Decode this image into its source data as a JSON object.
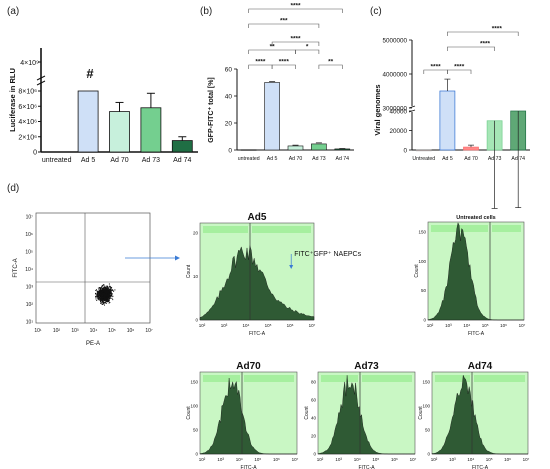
{
  "panel_letters": [
    "(a)",
    "(b)",
    "(c)",
    "(d)"
  ],
  "colors": {
    "untreated": "#9a9a9a",
    "ad5": "#cfe0f7",
    "ad70": "#c7f0dc",
    "ad73": "#74cf8f",
    "ad74": "#1f6e44",
    "c_ad5": "#2f6fd0",
    "c_ad70": "#ff6a6a",
    "hist_bg": "#c9f7c4",
    "hist_band": "#a6ef9f",
    "hist_fill": "#2f5a34",
    "arrow": "#3a7bd5"
  },
  "chart_data": [
    {
      "id": "a",
      "type": "bar",
      "ylabel": "Luciferase in RLU",
      "categories": [
        "untreated",
        "Ad 5",
        "Ad 70",
        "Ad 73",
        "Ad 74"
      ],
      "values": [
        0,
        8000000,
        5300000,
        5800000,
        1500000
      ],
      "errors": [
        0,
        0,
        1200000,
        1900000,
        500000
      ],
      "ylim": [
        0,
        8000000
      ],
      "yticks": [
        0,
        2000000,
        4000000,
        6000000,
        8000000
      ],
      "ytick_labels": [
        "0",
        "2×10⁶",
        "4×10⁶",
        "6×10⁶",
        "8×10⁶"
      ],
      "top_tick_label": "4×10⁹",
      "annotation": "#"
    },
    {
      "id": "b",
      "type": "bar",
      "ylabel": "GFP-FITC⁺ total [%]",
      "categories": [
        "untreated",
        "Ad 5",
        "Ad 70",
        "Ad 73",
        "Ad 74"
      ],
      "values": [
        0.2,
        50,
        3,
        4.5,
        0.8
      ],
      "errors": [
        0,
        0.8,
        0.6,
        0.8,
        0.3
      ],
      "ylim": [
        0,
        60
      ],
      "yticks": [
        0,
        20,
        40,
        60
      ],
      "ytick_labels": [
        "0",
        "20",
        "40",
        "60"
      ],
      "significance": [
        "****",
        "****",
        "****",
        "**",
        "****",
        "****",
        "***",
        "**",
        "*",
        "**"
      ]
    },
    {
      "id": "c",
      "type": "bar",
      "ylabel": "Viral genomes",
      "categories": [
        "Untreated",
        "Ad 5",
        "Ad 70",
        "Ad 73",
        "Ad 74"
      ],
      "values": [
        0,
        3500000,
        3000,
        30000,
        40000
      ],
      "errors": [
        0,
        350000,
        2000,
        15000,
        30000
      ],
      "ytick_labels": [
        "0",
        "20000",
        "40000",
        "3000000",
        "4000000",
        "5000000"
      ],
      "significance": [
        "****",
        "****",
        "****",
        "****"
      ]
    }
  ],
  "scatter": {
    "xlabel": "PE-A",
    "ylabel": "FITC-A",
    "tick_labels": [
      "10¹",
      "10²",
      "10³",
      "10⁴",
      "10⁵",
      "10⁶",
      "10⁷"
    ]
  },
  "histograms": [
    {
      "title": "Ad5",
      "xlabel": "FITC-A",
      "ylabel": "Count",
      "yticks": [
        "0",
        "10",
        "20"
      ],
      "xticks": [
        "10²",
        "10³",
        "10⁴",
        "10⁵",
        "10⁶",
        "10⁷"
      ],
      "annotation": "FITC⁺GFP⁺ NAEPCs"
    },
    {
      "title": "Untreated cells",
      "xlabel": "FITC-A",
      "ylabel": "Count",
      "yticks": [
        "0",
        "50",
        "100",
        "150"
      ],
      "xticks": [
        "10²",
        "10³",
        "10⁴",
        "10⁵",
        "10⁶",
        "10⁷"
      ]
    },
    {
      "title": "Ad70",
      "xlabel": "FITC-A",
      "ylabel": "Count",
      "yticks": [
        "0",
        "50",
        "100",
        "150"
      ],
      "xticks": [
        "10²",
        "10³",
        "10⁴",
        "10⁵",
        "10⁶",
        "10⁷"
      ]
    },
    {
      "title": "Ad73",
      "xlabel": "FITC-A",
      "ylabel": "Count",
      "yticks": [
        "0",
        "20",
        "40",
        "60",
        "80"
      ],
      "xticks": [
        "10²",
        "10³",
        "10⁴",
        "10⁵",
        "10⁶",
        "10⁷"
      ]
    },
    {
      "title": "Ad74",
      "xlabel": "FITC-A",
      "ylabel": "Count",
      "yticks": [
        "0",
        "50",
        "100",
        "150"
      ],
      "xticks": [
        "10²",
        "10³",
        "10⁴",
        "10⁵",
        "10⁶",
        "10⁷"
      ]
    }
  ]
}
